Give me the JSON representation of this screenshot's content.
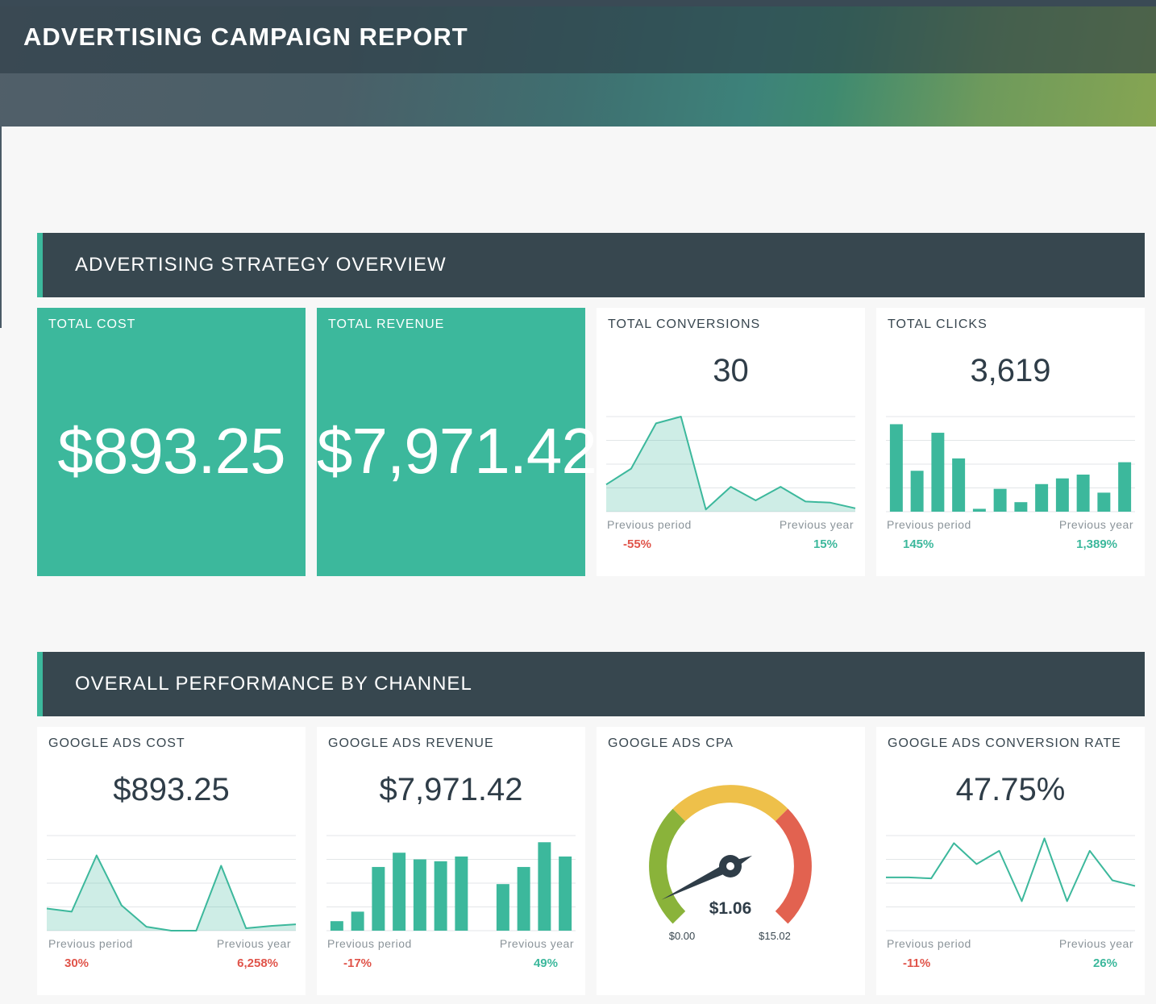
{
  "header": {
    "title": "ADVERTISING CAMPAIGN REPORT"
  },
  "sections": {
    "overview": "ADVERTISING STRATEGY OVERVIEW",
    "channel": "OVERALL PERFORMANCE BY CHANNEL"
  },
  "cards": {
    "total_cost": {
      "title": "TOTAL COST",
      "value": "$893.25"
    },
    "total_revenue": {
      "title": "TOTAL REVENUE",
      "value": "$7,971.42"
    },
    "total_conversions": {
      "title": "TOTAL CONVERSIONS",
      "value": "30",
      "prev_period_label": "Previous period",
      "prev_period_value": "-55%",
      "prev_year_label": "Previous year",
      "prev_year_value": "15%"
    },
    "total_clicks": {
      "title": "TOTAL CLICKS",
      "value": "3,619",
      "prev_period_label": "Previous period",
      "prev_period_value": "145%",
      "prev_year_label": "Previous year",
      "prev_year_value": "1,389%"
    },
    "gads_cost": {
      "title": "GOOGLE ADS COST",
      "value": "$893.25",
      "prev_period_label": "Previous period",
      "prev_period_value": "30%",
      "prev_year_label": "Previous year",
      "prev_year_value": "6,258%"
    },
    "gads_revenue": {
      "title": "GOOGLE ADS REVENUE",
      "value": "$7,971.42",
      "prev_period_label": "Previous period",
      "prev_period_value": "-17%",
      "prev_year_label": "Previous year",
      "prev_year_value": "49%"
    },
    "gads_cpa": {
      "title": "GOOGLE ADS CPA",
      "value": "$1.06",
      "min_label": "$0.00",
      "max_label": "$15.02",
      "min": 0,
      "max": 15.02,
      "current": 1.06
    },
    "gads_conv_rate": {
      "title": "GOOGLE ADS CONVERSION RATE",
      "value": "47.75%",
      "prev_period_label": "Previous period",
      "prev_period_value": "-11%",
      "prev_year_label": "Previous year",
      "prev_year_value": "26%"
    }
  },
  "colors": {
    "accent": "#3cb89c",
    "negative": "#e0544a",
    "header_bg": "#37474f",
    "gauge_green": "#8ab33a",
    "gauge_yellow": "#eec04a",
    "gauge_red": "#e26250"
  },
  "chart_data": [
    {
      "id": "conversions",
      "type": "area",
      "values": [
        1.2,
        1.9,
        3.9,
        4.2,
        0.1,
        1.1,
        0.5,
        1.1,
        0.45,
        0.4,
        0.15
      ],
      "ylim": [
        0,
        4.2
      ]
    },
    {
      "id": "clicks",
      "type": "bar",
      "values": [
        92,
        43,
        83,
        56,
        3,
        24,
        10,
        29,
        35,
        39,
        20,
        52
      ],
      "ylim": [
        0,
        100
      ]
    },
    {
      "id": "gads_cost",
      "type": "area",
      "values": [
        28,
        24,
        95,
        32,
        5,
        0,
        0,
        82,
        3,
        6,
        8
      ],
      "ylim": [
        0,
        120
      ]
    },
    {
      "id": "gads_revenue",
      "type": "bar",
      "values": [
        10,
        20,
        67,
        82,
        75,
        73,
        78,
        0,
        49,
        67,
        93,
        78
      ],
      "ylim": [
        0,
        100
      ]
    },
    {
      "id": "gads_conv_rate",
      "type": "line",
      "values": [
        56,
        56,
        55,
        92,
        70,
        84,
        31,
        97,
        31,
        84,
        53,
        47
      ],
      "ylim": [
        0,
        100
      ]
    }
  ]
}
